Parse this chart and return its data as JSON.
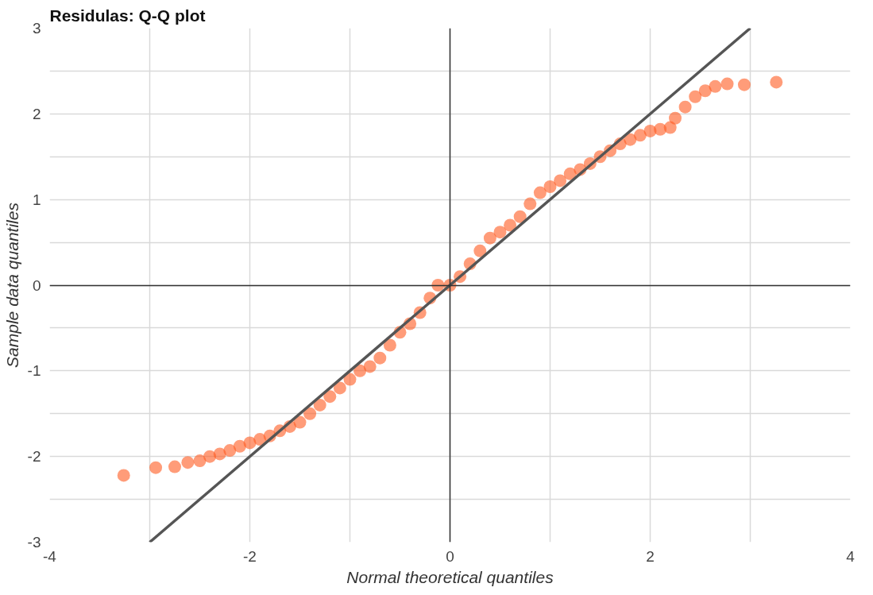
{
  "chart_data": {
    "type": "scatter",
    "title": "Residulas: Q-Q plot",
    "xlabel": "Normal theoretical quantiles",
    "ylabel": "Sample data quantiles",
    "xlim": [
      -4,
      4
    ],
    "ylim": [
      -3,
      3
    ],
    "xticks": [
      -4,
      {
        "value": -3,
        "label": null
      },
      -2,
      {
        "value": -1,
        "label": null
      },
      0,
      {
        "value": 1,
        "label": null
      },
      2,
      {
        "value": 3,
        "label": null
      },
      4
    ],
    "yticks": [
      -3,
      {
        "value": -2.5,
        "label": null
      },
      -2,
      {
        "value": -1.5,
        "label": null
      },
      -1,
      {
        "value": -0.5,
        "label": null
      },
      0,
      {
        "value": 0.5,
        "label": null
      },
      1,
      {
        "value": 1.5,
        "label": null
      },
      2,
      {
        "value": 2.5,
        "label": null
      },
      3
    ],
    "grid": true,
    "series": [
      {
        "marker": "circle",
        "color": "#ff5a1f",
        "x": [
          -3.26,
          -2.94,
          -2.75,
          -2.62,
          -2.5,
          -2.4,
          -2.3,
          -2.2,
          -2.1,
          -2.0,
          -1.9,
          -1.8,
          -1.7,
          -1.6,
          -1.5,
          -1.4,
          -1.3,
          -1.2,
          -1.1,
          -1.0,
          -0.9,
          -0.8,
          -0.7,
          -0.6,
          -0.5,
          -0.4,
          -0.3,
          -0.2,
          -0.12,
          0.0,
          0.1,
          0.2,
          0.3,
          0.4,
          0.5,
          0.6,
          0.7,
          0.8,
          0.9,
          1.0,
          1.1,
          1.2,
          1.3,
          1.4,
          1.5,
          1.6,
          1.7,
          1.8,
          1.9,
          2.0,
          2.1,
          2.2,
          2.25,
          2.35,
          2.45,
          2.55,
          2.65,
          2.77,
          2.94,
          3.26
        ],
        "values": [
          -2.22,
          -2.13,
          -2.12,
          -2.07,
          -2.05,
          -2.0,
          -1.97,
          -1.93,
          -1.88,
          -1.84,
          -1.8,
          -1.76,
          -1.7,
          -1.65,
          -1.6,
          -1.5,
          -1.4,
          -1.3,
          -1.2,
          -1.1,
          -1.0,
          -0.95,
          -0.85,
          -0.7,
          -0.55,
          -0.45,
          -0.32,
          -0.15,
          0.0,
          0.0,
          0.1,
          0.25,
          0.4,
          0.55,
          0.62,
          0.7,
          0.8,
          0.95,
          1.08,
          1.15,
          1.22,
          1.3,
          1.35,
          1.42,
          1.5,
          1.57,
          1.65,
          1.7,
          1.75,
          1.8,
          1.82,
          1.84,
          1.95,
          2.08,
          2.2,
          2.27,
          2.32,
          2.35,
          2.34,
          2.37
        ]
      },
      {
        "type": "line",
        "color": "#555555",
        "x": [
          -3,
          3
        ],
        "values": [
          -3,
          3
        ]
      }
    ]
  }
}
